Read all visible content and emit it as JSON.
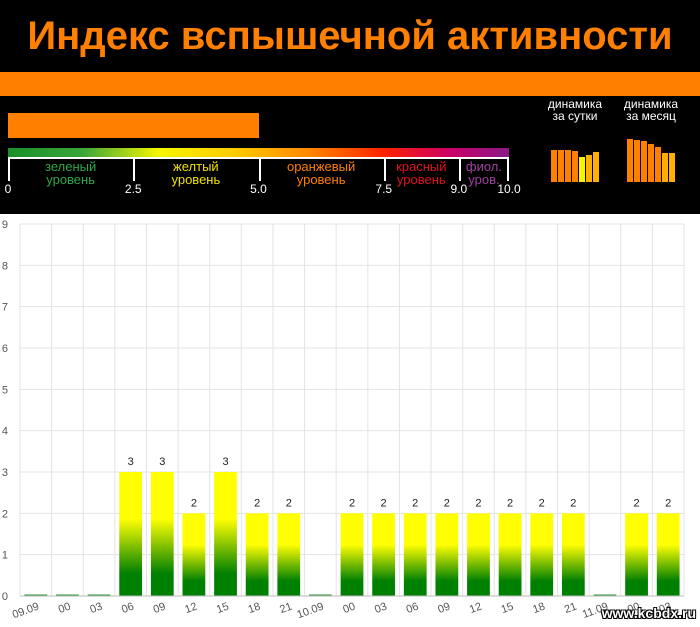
{
  "header": {
    "title": "Индекс вспышечной активности",
    "current_level_fraction": 0.5,
    "scale": {
      "zones": [
        {
          "line1": "зеленый",
          "line2": "уровень",
          "color": "#2ea84a",
          "from": 0,
          "to": 2.5
        },
        {
          "line1": "желтый",
          "line2": "уровень",
          "color": "#f0e000",
          "from": 2.5,
          "to": 5.0
        },
        {
          "line1": "оранжевый",
          "line2": "уровень",
          "color": "#ff7f00",
          "from": 5.0,
          "to": 7.5
        },
        {
          "line1": "красный",
          "line2": "уровень",
          "color": "#e01020",
          "from": 7.5,
          "to": 9.0
        },
        {
          "line1": "фиол.",
          "line2": "уров.",
          "color": "#a040a0",
          "from": 9.0,
          "to": 10.0
        }
      ],
      "ticks": [
        "0",
        "2.5",
        "5.0",
        "7.5",
        "9.0",
        "10.0"
      ],
      "tick_values": [
        0,
        2.5,
        5.0,
        7.5,
        9.0,
        10.0
      ]
    },
    "mini_charts": [
      {
        "title1": "динамика",
        "title2": "за сутки",
        "bars": [
          {
            "value": 0.52,
            "color": "#ff7f00"
          },
          {
            "value": 0.52,
            "color": "#ff7f00"
          },
          {
            "value": 0.52,
            "color": "#ff7f00"
          },
          {
            "value": 0.5,
            "color": "#ff7f00"
          },
          {
            "value": 0.4,
            "color": "#f5f500"
          },
          {
            "value": 0.44,
            "color": "#ffb000"
          },
          {
            "value": 0.48,
            "color": "#ffb000"
          }
        ]
      },
      {
        "title1": "динамика",
        "title2": "за месяц",
        "bars": [
          {
            "value": 0.7,
            "color": "#ff7f00"
          },
          {
            "value": 0.68,
            "color": "#ff7f00"
          },
          {
            "value": 0.66,
            "color": "#ff7f00"
          },
          {
            "value": 0.62,
            "color": "#ff7f00"
          },
          {
            "value": 0.56,
            "color": "#ff7f00"
          },
          {
            "value": 0.46,
            "color": "#ffb000"
          },
          {
            "value": 0.46,
            "color": "#ffb000"
          }
        ]
      }
    ]
  },
  "watermark": "www.kcbdx.ru",
  "chart_data": {
    "type": "bar",
    "ylim": [
      0,
      9
    ],
    "yticks": [
      "0",
      "1",
      "2",
      "3",
      "4",
      "5",
      "6",
      "7",
      "8",
      "9"
    ],
    "grid": true,
    "categories": [
      "09.09",
      "00",
      "03",
      "06",
      "09",
      "12",
      "15",
      "18",
      "21",
      "10.09",
      "00",
      "03",
      "06",
      "09",
      "12",
      "15",
      "18",
      "21",
      "11.09",
      "00",
      "03"
    ],
    "values": [
      0,
      0,
      0,
      3,
      3,
      2,
      3,
      2,
      2,
      0,
      2,
      2,
      2,
      2,
      2,
      2,
      2,
      2,
      0,
      2,
      2
    ],
    "data_labels": [
      "",
      "",
      "",
      "3",
      "3",
      "2",
      "3",
      "2",
      "2",
      "",
      "2",
      "2",
      "2",
      "2",
      "2",
      "2",
      "2",
      "2",
      "",
      "2",
      "2"
    ],
    "colors": {
      "top": "#ffff00",
      "bottom": "#008000"
    }
  }
}
